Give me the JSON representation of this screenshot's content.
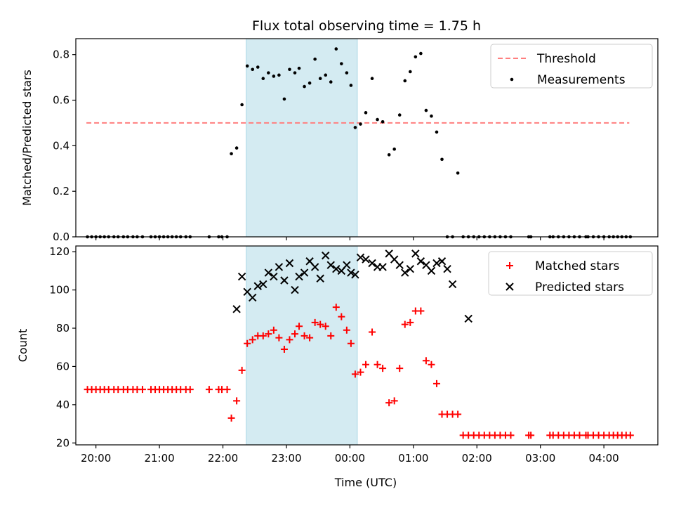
{
  "chart_data": [
    {
      "type": "scatter",
      "title": "Flux total observing time = 1.75 h",
      "ylabel": "Matched/Predicted stars",
      "xlabel": "",
      "xlim": [
        "19:41",
        "04:51"
      ],
      "ylim": [
        0,
        0.87
      ],
      "yticks": [
        0.0,
        0.2,
        0.4,
        0.6,
        0.8
      ],
      "ytick_labels": [
        "0.0",
        "0.2",
        "0.4",
        "0.6",
        "0.8"
      ],
      "xtick_labels": [
        "20:00",
        "21:00",
        "22:00",
        "23:00",
        "00:00",
        "01:00",
        "02:00",
        "03:00",
        "04:00"
      ],
      "shaded_span": [
        "22:22",
        "00:07"
      ],
      "legend_position": "top-right",
      "series": [
        {
          "name": "Threshold",
          "kind": "dashed-line",
          "color": "#ff7f7f",
          "x": [
            "19:51",
            "04:24"
          ],
          "y": [
            0.5,
            0.5
          ]
        },
        {
          "name": "Measurements",
          "kind": "dots",
          "color": "#000000",
          "x": [
            "19:52",
            "19:56",
            "20:00",
            "20:04",
            "20:08",
            "20:12",
            "20:17",
            "20:21",
            "20:26",
            "20:30",
            "20:35",
            "20:39",
            "20:44",
            "20:52",
            "20:56",
            "21:00",
            "21:04",
            "21:08",
            "21:12",
            "21:16",
            "21:20",
            "21:25",
            "21:29",
            "21:47",
            "21:56",
            "21:59",
            "22:04",
            "22:08",
            "22:13",
            "22:18",
            "22:23",
            "22:28",
            "22:33",
            "22:38",
            "22:43",
            "22:48",
            "22:53",
            "22:58",
            "23:03",
            "23:08",
            "23:12",
            "23:17",
            "23:22",
            "23:27",
            "23:32",
            "23:37",
            "23:42",
            "23:47",
            "23:52",
            "23:57",
            "00:01",
            "00:05",
            "00:10",
            "00:15",
            "00:21",
            "00:26",
            "00:31",
            "00:37",
            "00:42",
            "00:47",
            "00:52",
            "00:57",
            "01:02",
            "01:07",
            "01:12",
            "01:17",
            "01:22",
            "01:27",
            "01:32",
            "01:37",
            "01:42",
            "01:47",
            "01:52",
            "01:57",
            "02:02",
            "02:07",
            "02:12",
            "02:17",
            "02:22",
            "02:27",
            "02:32",
            "02:49",
            "02:51",
            "03:09",
            "03:12",
            "03:17",
            "03:22",
            "03:27",
            "03:32",
            "03:37",
            "03:43",
            "03:45",
            "03:50",
            "03:55",
            "04:00",
            "04:05",
            "04:09",
            "04:13",
            "04:17",
            "04:21",
            "04:25"
          ],
          "y": [
            0,
            0,
            0,
            0,
            0,
            0,
            0,
            0,
            0,
            0,
            0,
            0,
            0,
            0,
            0,
            0,
            0,
            0,
            0,
            0,
            0,
            0,
            0,
            0,
            0,
            0,
            0,
            0.365,
            0.39,
            0.58,
            0.75,
            0.735,
            0.745,
            0.695,
            0.72,
            0.705,
            0.71,
            0.605,
            0.735,
            0.72,
            0.74,
            0.66,
            0.675,
            0.78,
            0.695,
            0.71,
            0.68,
            0.825,
            0.76,
            0.72,
            0.665,
            0.48,
            0.495,
            0.545,
            0.695,
            0.515,
            0.505,
            0.36,
            0.385,
            0.535,
            0.685,
            0.725,
            0.79,
            0.805,
            0.555,
            0.53,
            0.46,
            0.34,
            0,
            0,
            0.28,
            0,
            0,
            0,
            0,
            0,
            0,
            0,
            0,
            0,
            0,
            0,
            0,
            0,
            0,
            0,
            0,
            0,
            0,
            0,
            0,
            0,
            0,
            0,
            0,
            0,
            0,
            0,
            0,
            0,
            0
          ]
        }
      ]
    },
    {
      "type": "scatter",
      "title": "",
      "ylabel": "Count",
      "xlabel": "Time (UTC)",
      "xlim": [
        "19:41",
        "04:51"
      ],
      "ylim": [
        19,
        123
      ],
      "yticks": [
        20,
        40,
        60,
        80,
        100,
        120
      ],
      "ytick_labels": [
        "20",
        "40",
        "60",
        "80",
        "100",
        "120"
      ],
      "xtick_labels": [
        "20:00",
        "21:00",
        "22:00",
        "23:00",
        "00:00",
        "01:00",
        "02:00",
        "03:00",
        "04:00"
      ],
      "shaded_span": [
        "22:22",
        "00:07"
      ],
      "legend_position": "top-right",
      "series": [
        {
          "name": "Matched stars",
          "marker": "plus",
          "color": "#ff0000",
          "x": [
            "19:52",
            "19:56",
            "20:00",
            "20:04",
            "20:08",
            "20:12",
            "20:17",
            "20:21",
            "20:26",
            "20:30",
            "20:35",
            "20:39",
            "20:44",
            "20:52",
            "20:56",
            "21:00",
            "21:04",
            "21:08",
            "21:12",
            "21:16",
            "21:20",
            "21:25",
            "21:29",
            "21:47",
            "21:56",
            "21:59",
            "22:04",
            "22:08",
            "22:13",
            "22:18",
            "22:23",
            "22:28",
            "22:33",
            "22:38",
            "22:43",
            "22:48",
            "22:53",
            "22:58",
            "23:03",
            "23:08",
            "23:12",
            "23:17",
            "23:22",
            "23:27",
            "23:32",
            "23:37",
            "23:42",
            "23:47",
            "23:52",
            "23:57",
            "00:01",
            "00:05",
            "00:10",
            "00:15",
            "00:21",
            "00:26",
            "00:31",
            "00:37",
            "00:42",
            "00:47",
            "00:52",
            "00:57",
            "01:02",
            "01:07",
            "01:12",
            "01:17",
            "01:22",
            "01:27",
            "01:32",
            "01:37",
            "01:42",
            "01:47",
            "01:52",
            "01:57",
            "02:02",
            "02:07",
            "02:12",
            "02:17",
            "02:22",
            "02:27",
            "02:32",
            "02:49",
            "02:51",
            "03:09",
            "03:12",
            "03:17",
            "03:22",
            "03:27",
            "03:32",
            "03:37",
            "03:43",
            "03:45",
            "03:50",
            "03:55",
            "04:00",
            "04:05",
            "04:09",
            "04:13",
            "04:17",
            "04:21",
            "04:25"
          ],
          "y": [
            48,
            48,
            48,
            48,
            48,
            48,
            48,
            48,
            48,
            48,
            48,
            48,
            48,
            48,
            48,
            48,
            48,
            48,
            48,
            48,
            48,
            48,
            48,
            48,
            48,
            48,
            48,
            33,
            42,
            58,
            72,
            74,
            76,
            76,
            77,
            79,
            75,
            69,
            74,
            77,
            81,
            76,
            75,
            83,
            82,
            81,
            76,
            91,
            86,
            79,
            72,
            56,
            57,
            61,
            78,
            61,
            59,
            41,
            42,
            59,
            82,
            83,
            89,
            89,
            63,
            61,
            51,
            35,
            35,
            35,
            35,
            24,
            24,
            24,
            24,
            24,
            24,
            24,
            24,
            24,
            24,
            24,
            24,
            24,
            24,
            24,
            24,
            24,
            24,
            24,
            24,
            24,
            24,
            24,
            24,
            24,
            24,
            24,
            24,
            24,
            24
          ]
        },
        {
          "name": "Predicted stars",
          "marker": "x",
          "color": "#000000",
          "x": [
            "22:13",
            "22:18",
            "22:23",
            "22:28",
            "22:33",
            "22:38",
            "22:43",
            "22:48",
            "22:53",
            "22:58",
            "23:03",
            "23:08",
            "23:12",
            "23:17",
            "23:22",
            "23:27",
            "23:32",
            "23:37",
            "23:42",
            "23:47",
            "23:52",
            "23:57",
            "00:01",
            "00:05",
            "00:10",
            "00:15",
            "00:21",
            "00:26",
            "00:31",
            "00:37",
            "00:42",
            "00:47",
            "00:52",
            "00:57",
            "01:02",
            "01:07",
            "01:12",
            "01:17",
            "01:22",
            "01:27",
            "01:32",
            "01:37",
            "01:52"
          ],
          "y": [
            90,
            107,
            99,
            96,
            102,
            103,
            109,
            107,
            112,
            105,
            114,
            100,
            107,
            109,
            115,
            112,
            106,
            118,
            113,
            111,
            110,
            113,
            109,
            108,
            117,
            116,
            114,
            112,
            112,
            119,
            116,
            113,
            109,
            111,
            119,
            115,
            113,
            110,
            114,
            115,
            111,
            103,
            85
          ]
        }
      ]
    }
  ]
}
